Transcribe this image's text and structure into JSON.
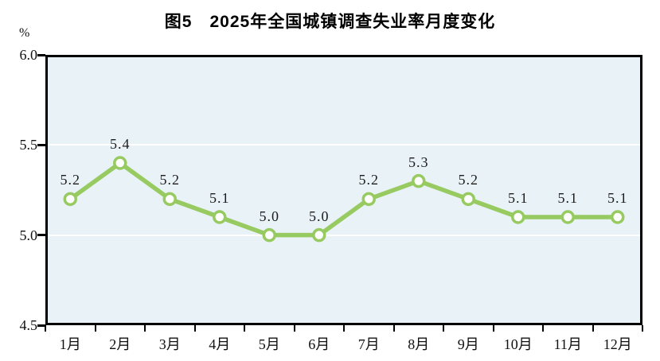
{
  "title": "图5　2025年全国城镇调查失业率月度变化",
  "y_axis": {
    "unit": "%"
  },
  "chart_data": {
    "type": "line",
    "title": "图5　2025年全国城镇调查失业率月度变化",
    "categories": [
      "1月",
      "2月",
      "3月",
      "4月",
      "5月",
      "6月",
      "7月",
      "8月",
      "9月",
      "10月",
      "11月",
      "12月"
    ],
    "values": [
      5.2,
      5.4,
      5.2,
      5.1,
      5.0,
      5.0,
      5.2,
      5.3,
      5.2,
      5.1,
      5.1,
      5.1
    ],
    "point_labels": [
      "5.2",
      "5.4",
      "5.2",
      "5.1",
      "5.0",
      "5.0",
      "5.2",
      "5.3",
      "5.2",
      "5.1",
      "5.1",
      "5.1"
    ],
    "xlabel": "",
    "ylabel": "%",
    "ylim": [
      4.5,
      6.0
    ],
    "y_ticks": [
      "6.0",
      "5.5",
      "5.0",
      "4.5"
    ],
    "gridlines_at": [
      5.5,
      5.0
    ],
    "grid": "horizontal",
    "legend": "none",
    "colors": {
      "line": "#97ca60",
      "marker_fill": "#ffffff",
      "plot_background": "#e9f2f7",
      "axis": "#000000",
      "gridline": "#ffffff",
      "text": "#1c1c1c"
    }
  }
}
